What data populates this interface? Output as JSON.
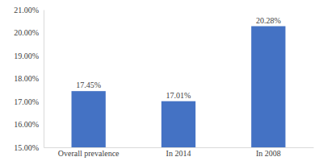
{
  "chart_data": {
    "type": "bar",
    "categories": [
      "Overall prevalence",
      "In 2014",
      "In 2008"
    ],
    "values": [
      17.45,
      17.01,
      20.28
    ],
    "value_labels": [
      "17.45%",
      "17.01%",
      "20.28%"
    ],
    "data_labels": true,
    "color": "#4472c4",
    "ylim": [
      15,
      21
    ],
    "yticks": [
      {
        "value": 15,
        "label": "15.00%"
      },
      {
        "value": 16,
        "label": "16.00%"
      },
      {
        "value": 17,
        "label": "17.00%"
      },
      {
        "value": 18,
        "label": "18.00%"
      },
      {
        "value": 19,
        "label": "19.00%"
      },
      {
        "value": 20,
        "label": "20.00%"
      },
      {
        "value": 21,
        "label": "21.00%"
      }
    ],
    "grid": false
  }
}
